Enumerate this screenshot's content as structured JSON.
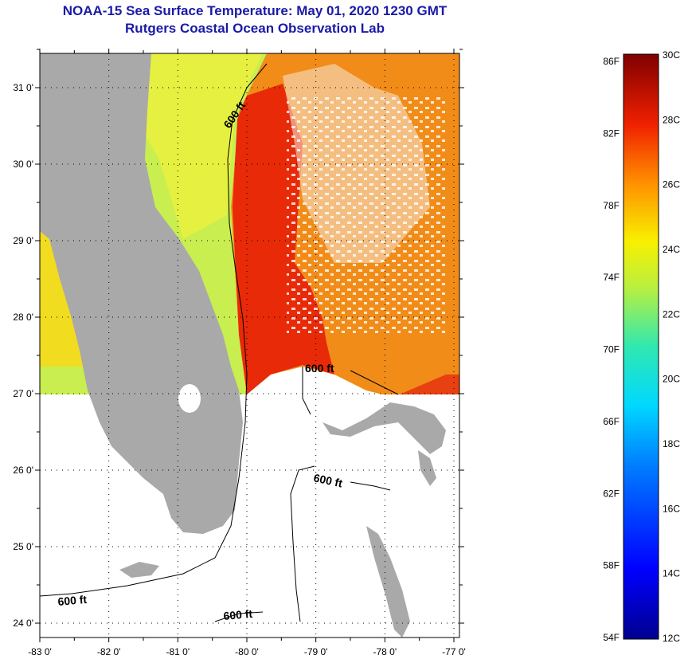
{
  "title": {
    "line1": "NOAA-15 Sea Surface Temperature:  May 01, 2020 1230 GMT",
    "line2": "Rutgers Coastal Ocean Observation Lab"
  },
  "map": {
    "lat_ticks": [
      {
        "value": 31,
        "label": "31 0'"
      },
      {
        "value": 30,
        "label": "30 0'"
      },
      {
        "value": 29,
        "label": "29 0'"
      },
      {
        "value": 28,
        "label": "28 0'"
      },
      {
        "value": 27,
        "label": "27 0'"
      },
      {
        "value": 26,
        "label": "26 0'"
      },
      {
        "value": 25,
        "label": "25 0'"
      },
      {
        "value": 24,
        "label": "24 0'"
      }
    ],
    "lon_ticks": [
      {
        "value": -83,
        "label": "-83 0'"
      },
      {
        "value": -82,
        "label": "-82 0'"
      },
      {
        "value": -81,
        "label": "-81 0'"
      },
      {
        "value": -80,
        "label": "-80 0'"
      },
      {
        "value": -79,
        "label": "-79 0'"
      },
      {
        "value": -78,
        "label": "-78 0'"
      },
      {
        "value": -77,
        "label": "-77 0'"
      }
    ],
    "contour_labels": [
      "600 ft",
      "600 ft",
      "600 ft",
      "600 ft",
      "600 ft"
    ],
    "colors": {
      "land": "#a9a9a9",
      "grid": "#000000"
    }
  },
  "colorbar": {
    "fahrenheit_labels": [
      "86F",
      "82F",
      "78F",
      "74F",
      "70F",
      "66F",
      "62F",
      "58F",
      "54F"
    ],
    "celsius_labels": [
      "30C",
      "28C",
      "26C",
      "24C",
      "22C",
      "20C",
      "18C",
      "16C",
      "14C",
      "12C"
    ],
    "range_f": [
      54,
      86
    ],
    "range_c": [
      12,
      30
    ]
  }
}
